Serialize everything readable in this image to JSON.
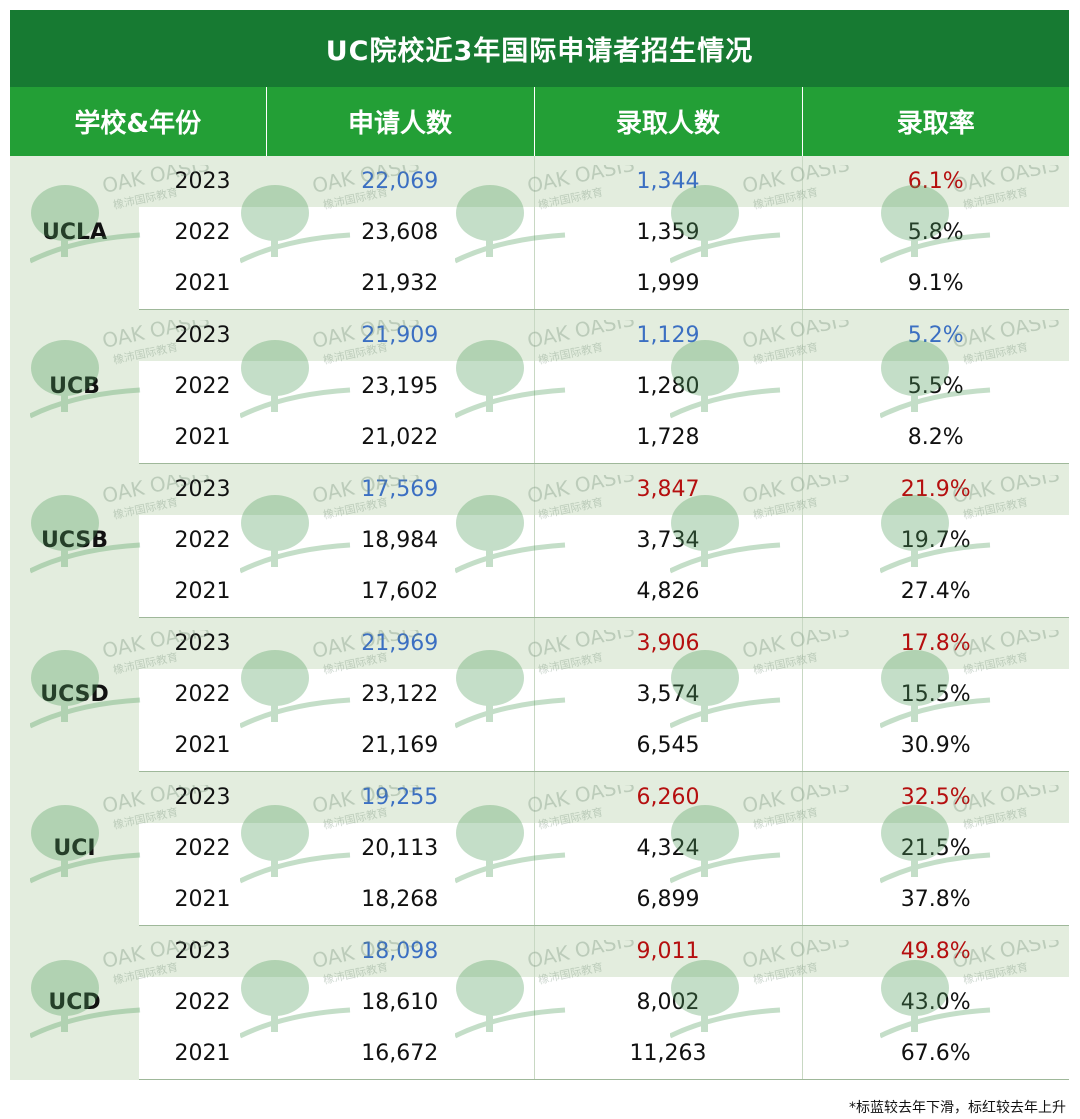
{
  "title": "UC院校近3年国际申请者招生情况",
  "headers": [
    "学校&年份",
    "申请人数",
    "录取人数",
    "录取率"
  ],
  "groups": [
    {
      "school": "UCLA",
      "rows": [
        {
          "year": "2023",
          "applicants": "22,069",
          "admitted": "1,344",
          "rate": "6.1%"
        },
        {
          "year": "2022",
          "applicants": "23,608",
          "admitted": "1,359",
          "rate": "5.8%"
        },
        {
          "year": "2021",
          "applicants": "21,932",
          "admitted": "1,999",
          "rate": "9.1%"
        }
      ]
    },
    {
      "school": "UCB",
      "rows": [
        {
          "year": "2023",
          "applicants": "21,909",
          "admitted": "1,129",
          "rate": "5.2%"
        },
        {
          "year": "2022",
          "applicants": "23,195",
          "admitted": "1,280",
          "rate": "5.5%"
        },
        {
          "year": "2021",
          "applicants": "21,022",
          "admitted": "1,728",
          "rate": "8.2%"
        }
      ]
    },
    {
      "school": "UCSB",
      "rows": [
        {
          "year": "2023",
          "applicants": "17,569",
          "admitted": "3,847",
          "rate": "21.9%"
        },
        {
          "year": "2022",
          "applicants": "18,984",
          "admitted": "3,734",
          "rate": "19.7%"
        },
        {
          "year": "2021",
          "applicants": "17,602",
          "admitted": "4,826",
          "rate": "27.4%"
        }
      ]
    },
    {
      "school": "UCSD",
      "rows": [
        {
          "year": "2023",
          "applicants": "21,969",
          "admitted": "3,906",
          "rate": "17.8%"
        },
        {
          "year": "2022",
          "applicants": "23,122",
          "admitted": "3,574",
          "rate": "15.5%"
        },
        {
          "year": "2021",
          "applicants": "21,169",
          "admitted": "6,545",
          "rate": "30.9%"
        }
      ]
    },
    {
      "school": "UCI",
      "rows": [
        {
          "year": "2023",
          "applicants": "19,255",
          "admitted": "6,260",
          "rate": "32.5%"
        },
        {
          "year": "2022",
          "applicants": "20,113",
          "admitted": "4,324",
          "rate": "21.5%"
        },
        {
          "year": "2021",
          "applicants": "18,268",
          "admitted": "6,899",
          "rate": "37.8%"
        }
      ]
    },
    {
      "school": "UCD",
      "rows": [
        {
          "year": "2023",
          "applicants": "18,098",
          "admitted": "9,011",
          "rate": "49.8%"
        },
        {
          "year": "2022",
          "applicants": "18,610",
          "admitted": "8,002",
          "rate": "43.0%"
        },
        {
          "year": "2021",
          "applicants": "16,672",
          "admitted": "11,263",
          "rate": "67.6%"
        }
      ]
    }
  ],
  "highlight_colors": {
    "decrease": "#3b6fc2",
    "increase": "#b50f0f"
  },
  "highlight_pattern_2023": {
    "UCLA": {
      "applicants": "decrease",
      "admitted": "decrease",
      "rate": "increase"
    },
    "UCB": {
      "applicants": "decrease",
      "admitted": "decrease",
      "rate": "decrease"
    },
    "UCSB": {
      "applicants": "decrease",
      "admitted": "increase",
      "rate": "increase"
    },
    "UCSD": {
      "applicants": "decrease",
      "admitted": "increase",
      "rate": "increase"
    },
    "UCI": {
      "applicants": "decrease",
      "admitted": "increase",
      "rate": "increase"
    },
    "UCD": {
      "applicants": "decrease",
      "admitted": "increase",
      "rate": "increase"
    }
  },
  "note": "*标蓝较去年下滑，标红较去年上升",
  "watermark": {
    "en": "OAK OASIS",
    "cn": "橡沛国际教育",
    "icon": "oak-tree-icon"
  }
}
